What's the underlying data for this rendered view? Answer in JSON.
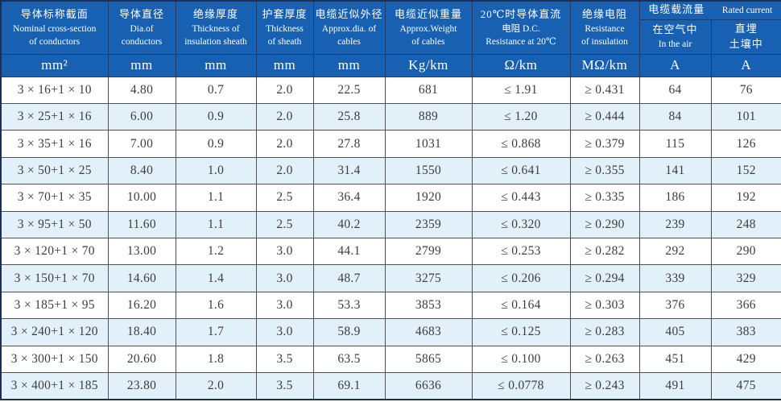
{
  "colors": {
    "header_bg": "#1760b2",
    "header_text": "#ffffff",
    "stripe_bg": "#e1f0f9",
    "row_bg": "#ffffff",
    "grid_line": "#4f4f4f",
    "data_text": "#3d3d3d"
  },
  "table": {
    "col_keys": [
      "spec",
      "diameter",
      "insulation_thickness",
      "sheath_thickness",
      "approx_diameter",
      "approx_weight",
      "dc_resistance",
      "insulation_resistance",
      "current_in_air",
      "current_buried"
    ],
    "header": {
      "columns": [
        {
          "zh": "导体标称截面",
          "en": "Nominal cross-section\nof conductors",
          "unit": "mm²"
        },
        {
          "zh": "导体直径",
          "en": "Dia.of\nconductors",
          "unit": "mm"
        },
        {
          "zh": "绝缘厚度",
          "en": "Thickness of\ninsulation sheath",
          "unit": "mm"
        },
        {
          "zh": "护套厚度",
          "en": "Thickness\nof sheath",
          "unit": "mm"
        },
        {
          "zh": "电缆近似外径",
          "en": "Approx.dia. of\ncables",
          "unit": "mm"
        },
        {
          "zh": "电缆近似重量",
          "en": "Approx.Weight\nof cables",
          "unit": "Kg/km"
        },
        {
          "zh": "20℃时导体直流",
          "en": "电阻 D.C.\nResistance at 20℃",
          "unit": "Ω/km"
        },
        {
          "zh": "绝缘电阻",
          "en": "Resistance\nof insulation",
          "unit": "MΩ/km"
        }
      ],
      "current_group": {
        "zh": "电缆载流量",
        "en": "Rated current",
        "sub": [
          {
            "zh": "在空气中",
            "en": "In the air",
            "unit": "A"
          },
          {
            "zh": "直埋\n土壤中",
            "en": "",
            "unit": "A"
          }
        ]
      }
    },
    "rows": [
      [
        "3 × 16+1 × 10",
        "4.80",
        "0.7",
        "2.0",
        "22.5",
        "681",
        "≤ 1.91",
        "≥ 0.431",
        "64",
        "76"
      ],
      [
        "3 × 25+1 × 16",
        "6.00",
        "0.9",
        "2.0",
        "25.8",
        "889",
        "≤ 1.20",
        "≥ 0.444",
        "84",
        "101"
      ],
      [
        "3 × 35+1 × 16",
        "7.00",
        "0.9",
        "2.0",
        "27.8",
        "1031",
        "≤ 0.868",
        "≥ 0.379",
        "115",
        "126"
      ],
      [
        "3 × 50+1 × 25",
        "8.40",
        "1.0",
        "2.0",
        "31.4",
        "1550",
        "≤ 0.641",
        "≥ 0.355",
        "141",
        "152"
      ],
      [
        "3 × 70+1 × 35",
        "10.00",
        "1.1",
        "2.5",
        "36.4",
        "1920",
        "≤ 0.443",
        "≥ 0.335",
        "186",
        "192"
      ],
      [
        "3 × 95+1 × 50",
        "11.60",
        "1.1",
        "2.5",
        "40.2",
        "2359",
        "≤ 0.320",
        "≥ 0.290",
        "239",
        "248"
      ],
      [
        "3 × 120+1 × 70",
        "13.00",
        "1.2",
        "3.0",
        "44.1",
        "2799",
        "≤ 0.253",
        "≥ 0.282",
        "292",
        "290"
      ],
      [
        "3 × 150+1 × 70",
        "14.60",
        "1.4",
        "3.0",
        "48.7",
        "3275",
        "≤ 0.206",
        "≥ 0.294",
        "339",
        "329"
      ],
      [
        "3 × 185+1 × 95",
        "16.20",
        "1.6",
        "3.0",
        "53.3",
        "3853",
        "≤ 0.164",
        "≥ 0.303",
        "376",
        "366"
      ],
      [
        "3 × 240+1 × 120",
        "18.40",
        "1.7",
        "3.0",
        "58.9",
        "4683",
        "≤ 0.125",
        "≥ 0.283",
        "405",
        "383"
      ],
      [
        "3 × 300+1 × 150",
        "20.60",
        "1.8",
        "3.5",
        "63.5",
        "5865",
        "≤ 0.100",
        "≥ 0.263",
        "451",
        "429"
      ],
      [
        "3 × 400+1 × 185",
        "23.80",
        "2.0",
        "3.5",
        "69.1",
        "6636",
        "≤ 0.0778",
        "≥ 0.243",
        "491",
        "475"
      ]
    ]
  }
}
